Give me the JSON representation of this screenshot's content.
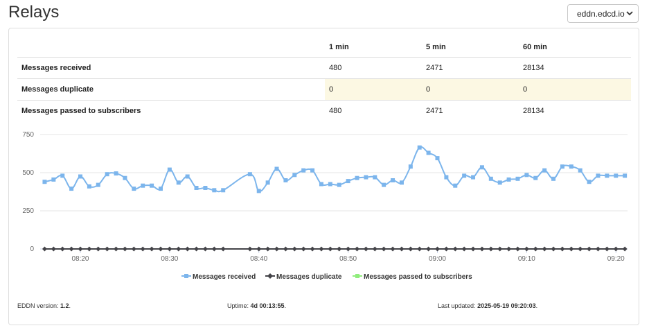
{
  "header": {
    "title": "Relays",
    "server_select": "eddn.edcd.io"
  },
  "stats_table": {
    "columns": [
      "",
      "1 min",
      "5 min",
      "60 min"
    ],
    "rows": [
      {
        "label": "Messages received",
        "values": [
          "480",
          "2471",
          "28134"
        ]
      },
      {
        "label": "Messages duplicate",
        "values": [
          "0",
          "0",
          "0"
        ]
      },
      {
        "label": "Messages passed to subscribers",
        "values": [
          "480",
          "2471",
          "28134"
        ]
      }
    ]
  },
  "chart_data": {
    "type": "line",
    "title": "",
    "xlabel": "",
    "ylabel": "",
    "y_ticks": [
      "750",
      "500",
      "250",
      "0"
    ],
    "ylim": [
      0,
      750
    ],
    "x_ticks": [
      "08:20",
      "08:30",
      "08:40",
      "08:50",
      "09:00",
      "09:10",
      "09:20"
    ],
    "x_tick_minutes": [
      20,
      30,
      40,
      50,
      60,
      70,
      80
    ],
    "xlim_minutes": [
      15.5,
      81.3
    ],
    "x_unit": "minutes after 08:00",
    "grid": true,
    "legend_position": "bottom",
    "series": [
      {
        "name": "Messages received",
        "color": "#7cb5ec",
        "marker": "square",
        "x": [
          16,
          17,
          18,
          19,
          20,
          21,
          22,
          23,
          24,
          25,
          26,
          27,
          28,
          29,
          30,
          31,
          32,
          33,
          34,
          35,
          36,
          39,
          40,
          41,
          42,
          43,
          44,
          45,
          46,
          47,
          48,
          49,
          50,
          51,
          52,
          53,
          54,
          55,
          56,
          57,
          58,
          59,
          60,
          61,
          62,
          63,
          64,
          65,
          66,
          67,
          68,
          69,
          70,
          71,
          72,
          73,
          74,
          75,
          76,
          77,
          78,
          79,
          80,
          81
        ],
        "values": [
          440,
          455,
          480,
          395,
          475,
          410,
          420,
          490,
          495,
          465,
          395,
          415,
          415,
          395,
          520,
          435,
          475,
          400,
          400,
          385,
          385,
          490,
          380,
          435,
          525,
          450,
          485,
          515,
          515,
          425,
          425,
          420,
          445,
          465,
          470,
          470,
          420,
          450,
          435,
          540,
          665,
          630,
          595,
          470,
          415,
          480,
          470,
          535,
          460,
          435,
          455,
          460,
          485,
          465,
          515,
          460,
          540,
          540,
          515,
          440,
          480,
          480,
          480,
          480
        ]
      },
      {
        "name": "Messages duplicate",
        "color": "#434348",
        "marker": "diamond",
        "x": [
          16,
          17,
          18,
          19,
          20,
          21,
          22,
          23,
          24,
          25,
          26,
          27,
          28,
          29,
          30,
          31,
          32,
          33,
          34,
          35,
          36,
          39,
          40,
          41,
          42,
          43,
          44,
          45,
          46,
          47,
          48,
          49,
          50,
          51,
          52,
          53,
          54,
          55,
          56,
          57,
          58,
          59,
          60,
          61,
          62,
          63,
          64,
          65,
          66,
          67,
          68,
          69,
          70,
          71,
          72,
          73,
          74,
          75,
          76,
          77,
          78,
          79,
          80,
          81
        ],
        "values": [
          0,
          0,
          0,
          0,
          0,
          0,
          0,
          0,
          0,
          0,
          0,
          0,
          0,
          0,
          0,
          0,
          0,
          0,
          0,
          0,
          0,
          0,
          0,
          0,
          0,
          0,
          0,
          0,
          0,
          0,
          0,
          0,
          0,
          0,
          0,
          0,
          0,
          0,
          0,
          0,
          0,
          0,
          0,
          0,
          0,
          0,
          0,
          0,
          0,
          0,
          0,
          0,
          0,
          0,
          0,
          0,
          0,
          0,
          0,
          0,
          0,
          0,
          0,
          0
        ]
      },
      {
        "name": "Messages passed to subscribers",
        "color": "#90ed7d",
        "marker": "square",
        "x": [],
        "values": []
      }
    ]
  },
  "footer": {
    "version_label": "EDDN version:",
    "version_value": "1.2",
    "uptime_label": "Uptime:",
    "uptime_value": "4d 00:13:55",
    "updated_label": "Last updated:",
    "updated_value": "2025-05-19 09:20:03"
  }
}
